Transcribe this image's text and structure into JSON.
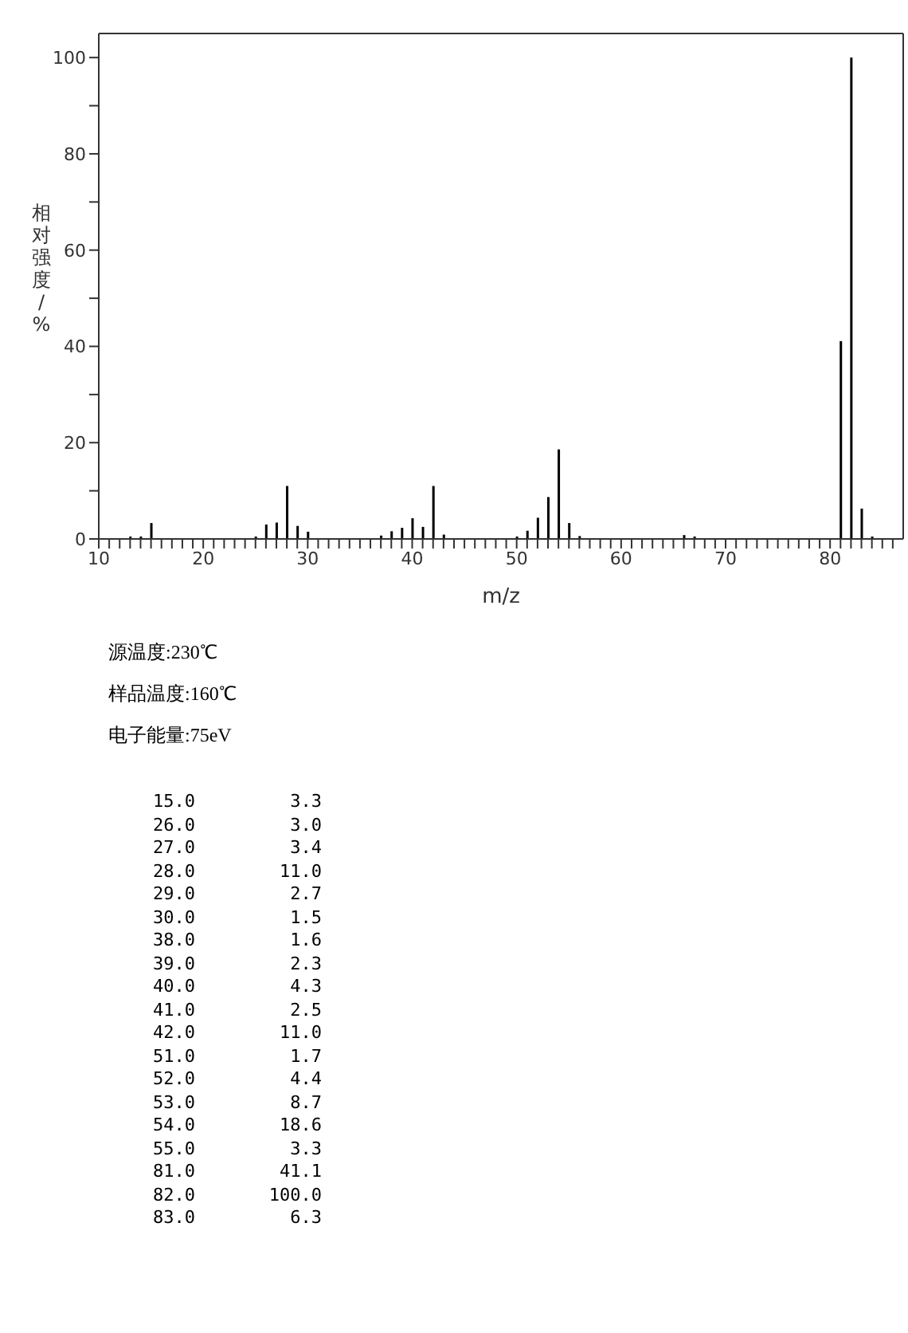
{
  "chart_data": {
    "type": "bar",
    "xlabel": "m/z",
    "ylabel": "相对强度/%",
    "color": "#000000",
    "x": [
      13,
      14,
      15,
      25,
      26,
      27,
      28,
      29,
      30,
      37,
      38,
      39,
      40,
      41,
      42,
      43,
      50,
      51,
      52,
      53,
      54,
      55,
      56,
      66,
      67,
      79,
      81,
      82,
      83,
      84
    ],
    "values": [
      0.5,
      0.5,
      3.3,
      0.5,
      3.0,
      3.4,
      11.0,
      2.7,
      1.5,
      0.7,
      1.6,
      2.3,
      4.3,
      2.5,
      11.0,
      0.9,
      0.5,
      1.7,
      4.4,
      8.7,
      18.6,
      3.3,
      0.6,
      0.8,
      0.5,
      null,
      41.1,
      100.0,
      6.3,
      0.5
    ],
    "xlim": [
      10,
      87
    ],
    "xticks": [
      10,
      {
        "value": 11,
        "label": null
      },
      {
        "value": 12,
        "label": null
      },
      {
        "value": 13,
        "label": null
      },
      {
        "value": 14,
        "label": null
      },
      {
        "value": 15,
        "label": null
      },
      {
        "value": 16,
        "label": null
      },
      {
        "value": 17,
        "label": null
      },
      {
        "value": 18,
        "label": null
      },
      {
        "value": 19,
        "label": null
      },
      20,
      {
        "value": 21,
        "label": null
      },
      {
        "value": 22,
        "label": null
      },
      {
        "value": 23,
        "label": null
      },
      {
        "value": 24,
        "label": null
      },
      {
        "value": 25,
        "label": null
      },
      {
        "value": 26,
        "label": null
      },
      {
        "value": 27,
        "label": null
      },
      {
        "value": 28,
        "label": null
      },
      {
        "value": 29,
        "label": null
      },
      30,
      {
        "value": 31,
        "label": null
      },
      {
        "value": 32,
        "label": null
      },
      {
        "value": 33,
        "label": null
      },
      {
        "value": 34,
        "label": null
      },
      {
        "value": 35,
        "label": null
      },
      {
        "value": 36,
        "label": null
      },
      {
        "value": 37,
        "label": null
      },
      {
        "value": 38,
        "label": null
      },
      {
        "value": 39,
        "label": null
      },
      40,
      {
        "value": 41,
        "label": null
      },
      {
        "value": 42,
        "label": null
      },
      {
        "value": 43,
        "label": null
      },
      {
        "value": 44,
        "label": null
      },
      {
        "value": 45,
        "label": null
      },
      {
        "value": 46,
        "label": null
      },
      {
        "value": 47,
        "label": null
      },
      {
        "value": 48,
        "label": null
      },
      {
        "value": 49,
        "label": null
      },
      50,
      {
        "value": 51,
        "label": null
      },
      {
        "value": 52,
        "label": null
      },
      {
        "value": 53,
        "label": null
      },
      {
        "value": 54,
        "label": null
      },
      {
        "value": 55,
        "label": null
      },
      {
        "value": 56,
        "label": null
      },
      {
        "value": 57,
        "label": null
      },
      {
        "value": 58,
        "label": null
      },
      {
        "value": 59,
        "label": null
      },
      60,
      {
        "value": 61,
        "label": null
      },
      {
        "value": 62,
        "label": null
      },
      {
        "value": 63,
        "label": null
      },
      {
        "value": 64,
        "label": null
      },
      {
        "value": 65,
        "label": null
      },
      {
        "value": 66,
        "label": null
      },
      {
        "value": 67,
        "label": null
      },
      {
        "value": 68,
        "label": null
      },
      {
        "value": 69,
        "label": null
      },
      70,
      {
        "value": 71,
        "label": null
      },
      {
        "value": 72,
        "label": null
      },
      {
        "value": 73,
        "label": null
      },
      {
        "value": 74,
        "label": null
      },
      {
        "value": 75,
        "label": null
      },
      {
        "value": 76,
        "label": null
      },
      {
        "value": 77,
        "label": null
      },
      {
        "value": 78,
        "label": null
      },
      {
        "value": 79,
        "label": null
      },
      80,
      {
        "value": 81,
        "label": null
      },
      {
        "value": 82,
        "label": null
      },
      {
        "value": 83,
        "label": null
      },
      {
        "value": 84,
        "label": null
      },
      {
        "value": 85,
        "label": null
      },
      {
        "value": 86,
        "label": null
      }
    ],
    "ylim": [
      0,
      105
    ],
    "yticks": [
      0,
      {
        "value": 10,
        "label": null
      },
      20,
      {
        "value": 30,
        "label": null
      },
      40,
      {
        "value": 50,
        "label": null
      },
      60,
      {
        "value": 70,
        "label": null
      },
      80,
      {
        "value": 90,
        "label": null
      },
      100
    ],
    "annotations": [
      "源温度:230℃",
      "样品温度:160℃",
      "电子能量:75eV",
      "15.0         3.3",
      "26.0         3.0",
      "27.0         3.4",
      "28.0        11.0",
      "29.0         2.7",
      "30.0         1.5",
      "38.0         1.6",
      "39.0         2.3",
      "40.0         4.3",
      "41.0         2.5",
      "42.0        11.0",
      "51.0         1.7",
      "52.0         4.4",
      "53.0         8.7",
      "54.0        18.6",
      "55.0         3.3",
      "81.0        41.1",
      "82.0       100.0",
      "83.0         6.3"
    ]
  }
}
